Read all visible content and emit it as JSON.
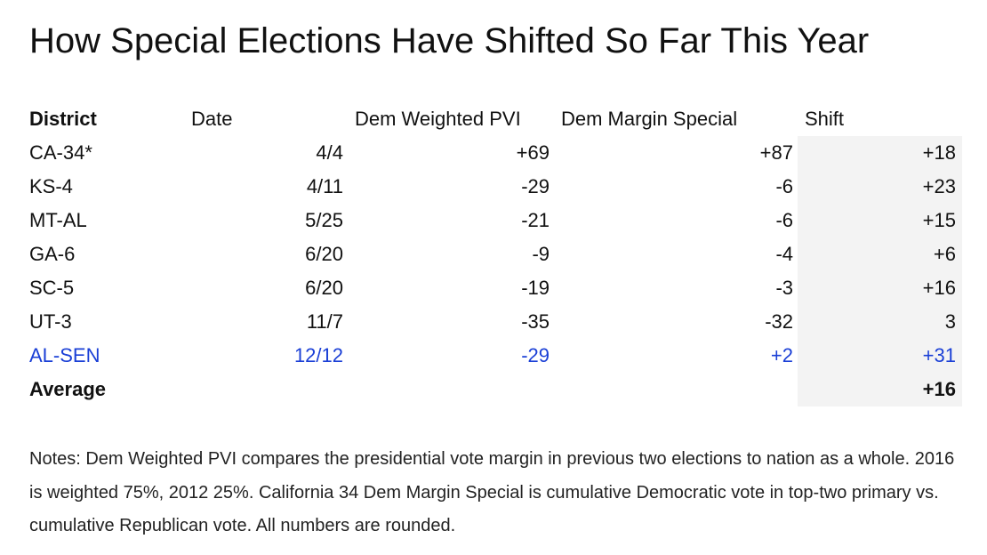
{
  "title": "How Special Elections Have Shifted So Far This Year",
  "chart_data": {
    "type": "table",
    "title": "How Special Elections Have Shifted So Far This Year",
    "columns": [
      "District",
      "Date",
      "Dem Weighted PVI",
      "Dem Margin Special",
      "Shift"
    ],
    "rows": [
      {
        "district": "CA-34*",
        "date": "4/4",
        "pvi": "+69",
        "margin": "+87",
        "shift": "+18"
      },
      {
        "district": "KS-4",
        "date": "4/11",
        "pvi": "-29",
        "margin": "-6",
        "shift": "+23"
      },
      {
        "district": "MT-AL",
        "date": "5/25",
        "pvi": "-21",
        "margin": "-6",
        "shift": "+15"
      },
      {
        "district": "GA-6",
        "date": "6/20",
        "pvi": "-9",
        "margin": "-4",
        "shift": "+6"
      },
      {
        "district": "SC-5",
        "date": "6/20",
        "pvi": "-19",
        "margin": "-3",
        "shift": "+16"
      },
      {
        "district": "UT-3",
        "date": "11/7",
        "pvi": "-35",
        "margin": "-32",
        "shift": "3"
      },
      {
        "district": "AL-SEN",
        "date": "12/12",
        "pvi": "-29",
        "margin": "+2",
        "shift": "+31",
        "highlight": true
      }
    ],
    "average": {
      "label": "Average",
      "shift": "+16"
    },
    "highlight_color": "#1a3fd6",
    "shift_column_background": "#f3f3f3"
  },
  "notes": "Notes: Dem Weighted PVI compares the presidential vote margin in previous two elections to nation as a whole. 2016 is weighted 75%, 2012 25%. California 34 Dem Margin Special is cumulative Democratic vote in top-two primary vs. cumulative Republican vote. All numbers are rounded."
}
